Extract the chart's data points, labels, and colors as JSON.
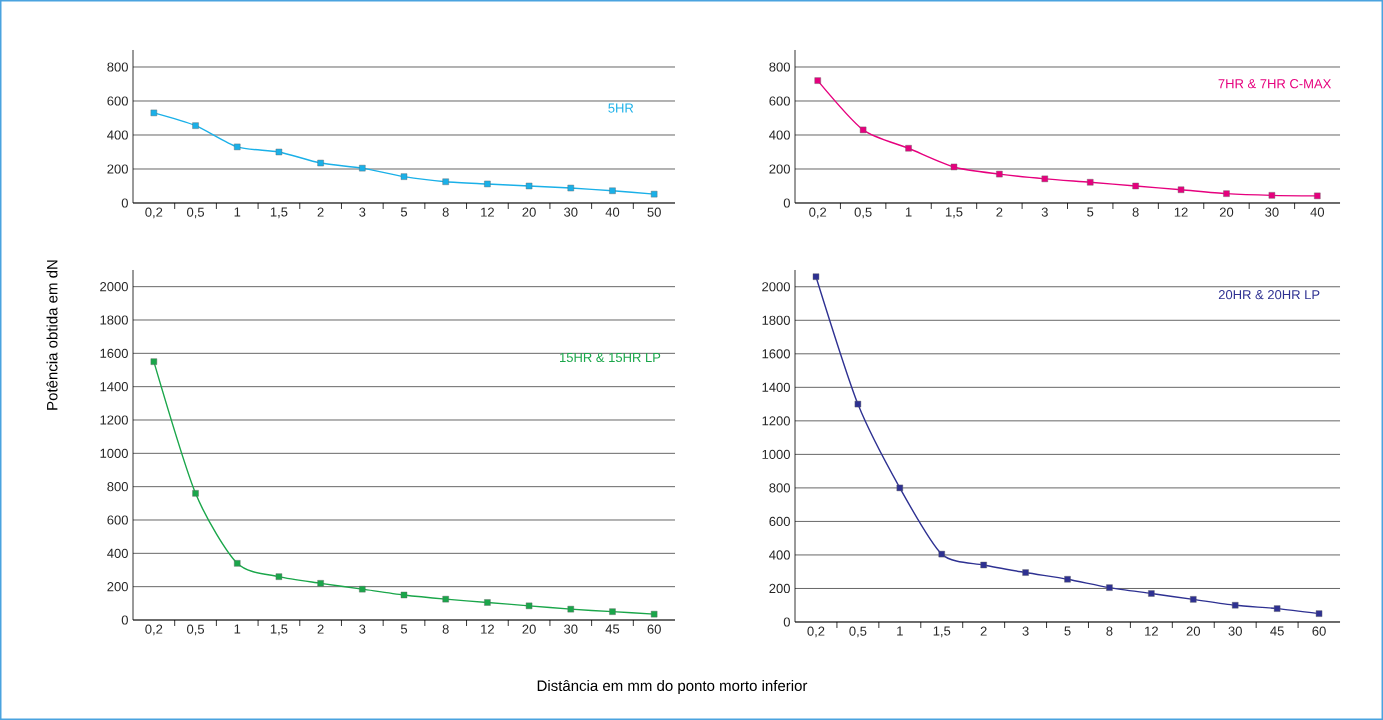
{
  "chart_data": [
    {
      "type": "line",
      "categories": [
        "0,2",
        "0,5",
        "1",
        "1,5",
        "2",
        "3",
        "5",
        "8",
        "12",
        "20",
        "30",
        "40",
        "50"
      ],
      "series": [
        {
          "name": "5HR",
          "color": "#1ab0e8",
          "values": [
            530,
            455,
            330,
            300,
            235,
            205,
            155,
            125,
            112,
            100,
            88,
            72,
            52
          ]
        }
      ],
      "ylim": [
        0,
        900
      ],
      "yticks": [
        0,
        200,
        400,
        600,
        800
      ],
      "grid": "y",
      "marker": "square"
    },
    {
      "type": "line",
      "categories": [
        "0,2",
        "0,5",
        "1",
        "1,5",
        "2",
        "3",
        "5",
        "8",
        "12",
        "20",
        "30",
        "40"
      ],
      "series": [
        {
          "name": "7HR & 7HR C-MAX",
          "color": "#e6007e",
          "values": [
            720,
            430,
            322,
            212,
            170,
            142,
            122,
            100,
            78,
            55,
            45,
            42
          ]
        }
      ],
      "ylim": [
        0,
        900
      ],
      "yticks": [
        0,
        200,
        400,
        600,
        800
      ],
      "grid": "y",
      "marker": "square"
    },
    {
      "type": "line",
      "categories": [
        "0,2",
        "0,5",
        "1",
        "1,5",
        "2",
        "3",
        "5",
        "8",
        "12",
        "20",
        "30",
        "45",
        "60"
      ],
      "series": [
        {
          "name": "15HR & 15HR LP",
          "color": "#1aa64a",
          "values": [
            1550,
            760,
            340,
            260,
            220,
            185,
            150,
            125,
            105,
            85,
            65,
            50,
            35
          ]
        }
      ],
      "ylim": [
        0,
        2100
      ],
      "yticks": [
        0,
        200,
        400,
        600,
        800,
        1000,
        1200,
        1400,
        1600,
        1800,
        2000
      ],
      "grid": "y",
      "marker": "square",
      "xlabel": "Distância em mm do ponto morto inferior",
      "ylabel": "Potência obtida em dN"
    },
    {
      "type": "line",
      "categories": [
        "0,2",
        "0,5",
        "1",
        "1,5",
        "2",
        "3",
        "5",
        "8",
        "12",
        "20",
        "30",
        "45",
        "60"
      ],
      "series": [
        {
          "name": "20HR & 20HR LP",
          "color": "#2e3192",
          "values": [
            2060,
            1300,
            800,
            405,
            340,
            295,
            255,
            205,
            170,
            135,
            100,
            80,
            50
          ]
        }
      ],
      "ylim": [
        0,
        2100
      ],
      "yticks": [
        0,
        200,
        400,
        600,
        800,
        1000,
        1200,
        1400,
        1600,
        1800,
        2000
      ],
      "grid": "y",
      "marker": "square"
    }
  ]
}
